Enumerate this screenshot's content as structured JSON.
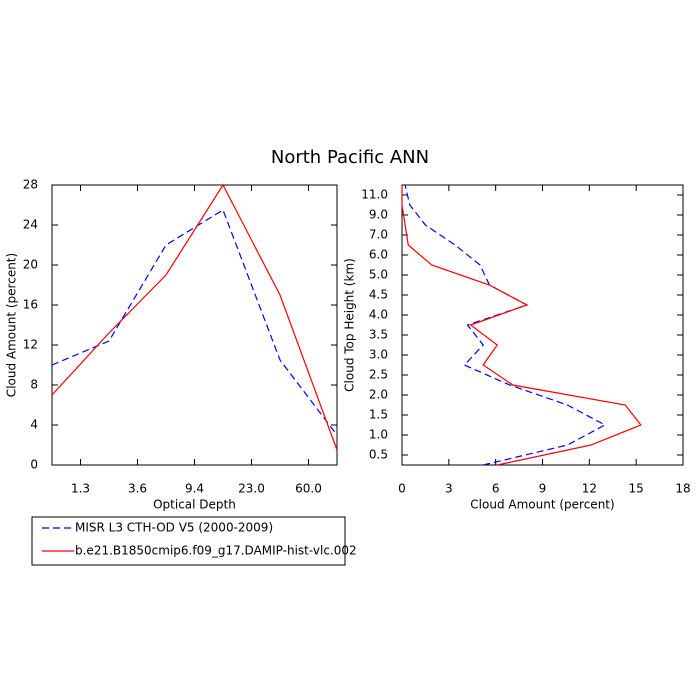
{
  "chart_data": [
    {
      "type": "line",
      "title": "North Pacific ANN",
      "x_label": "Optical Depth",
      "y_label": "Cloud Amount (percent)",
      "x": [
        0,
        1,
        2,
        3,
        4,
        5
      ],
      "xlim": [
        0,
        5
      ],
      "xticks": [
        {
          "value": 0.5,
          "label": "1.3"
        },
        {
          "value": 1.5,
          "label": "3.6"
        },
        {
          "value": 2.5,
          "label": "9.4"
        },
        {
          "value": 3.5,
          "label": "23.0"
        },
        {
          "value": 4.5,
          "label": "60.0"
        }
      ],
      "ylim": [
        0,
        28
      ],
      "yticks": [
        0,
        4,
        8,
        12,
        16,
        20,
        24,
        28
      ],
      "series": [
        {
          "name": "MISR L3 CTH-OD V5 (2000-2009)",
          "color": "#0000ff",
          "dash": true,
          "values": [
            10,
            12.4,
            22,
            25.5,
            10.5,
            3
          ]
        },
        {
          "name": "b.e21.B1850cmip6.f09_g17.DAMIP-hist-vlc.002",
          "color": "#ff0000",
          "dash": false,
          "values": [
            7,
            13.2,
            19,
            28,
            17,
            1.5
          ]
        }
      ]
    },
    {
      "type": "profile",
      "x_label": "Cloud Amount (percent)",
      "y_label": "Cloud Top Height (km)",
      "y": [
        -0.5,
        0.5,
        1.5,
        2.5,
        3.5,
        4.5,
        5.5,
        6.5,
        7.5,
        8.5,
        9.5,
        10.5,
        11.5,
        12.5,
        13.5
      ],
      "ylim": [
        -0.5,
        13.5
      ],
      "yticks": [
        {
          "value": 0,
          "label": "0.5"
        },
        {
          "value": 1,
          "label": "1.0"
        },
        {
          "value": 2,
          "label": "1.5"
        },
        {
          "value": 3,
          "label": "2.0"
        },
        {
          "value": 4,
          "label": "2.5"
        },
        {
          "value": 5,
          "label": "3.0"
        },
        {
          "value": 6,
          "label": "3.5"
        },
        {
          "value": 7,
          "label": "4.0"
        },
        {
          "value": 8,
          "label": "4.5"
        },
        {
          "value": 9,
          "label": "5.0"
        },
        {
          "value": 10,
          "label": "6.0"
        },
        {
          "value": 11,
          "label": "7.0"
        },
        {
          "value": 12,
          "label": "9.0"
        },
        {
          "value": 13,
          "label": "11.0"
        }
      ],
      "xlim": [
        0,
        18
      ],
      "xticks": [
        0,
        3,
        6,
        9,
        12,
        15,
        18
      ],
      "series": [
        {
          "color": "#0000ff",
          "dash": true,
          "values": [
            5.2,
            10.6,
            13.0,
            10.6,
            6.9,
            4.0,
            5.2,
            4.2,
            8.0,
            5.6,
            5.0,
            3.4,
            1.5,
            0.5,
            0.2
          ]
        },
        {
          "color": "#ff0000",
          "dash": false,
          "values": [
            6.1,
            12.1,
            15.3,
            14.3,
            7.1,
            5.2,
            6.1,
            4.4,
            8.0,
            5.6,
            1.9,
            0.4,
            0.2,
            0,
            0
          ]
        }
      ]
    }
  ]
}
